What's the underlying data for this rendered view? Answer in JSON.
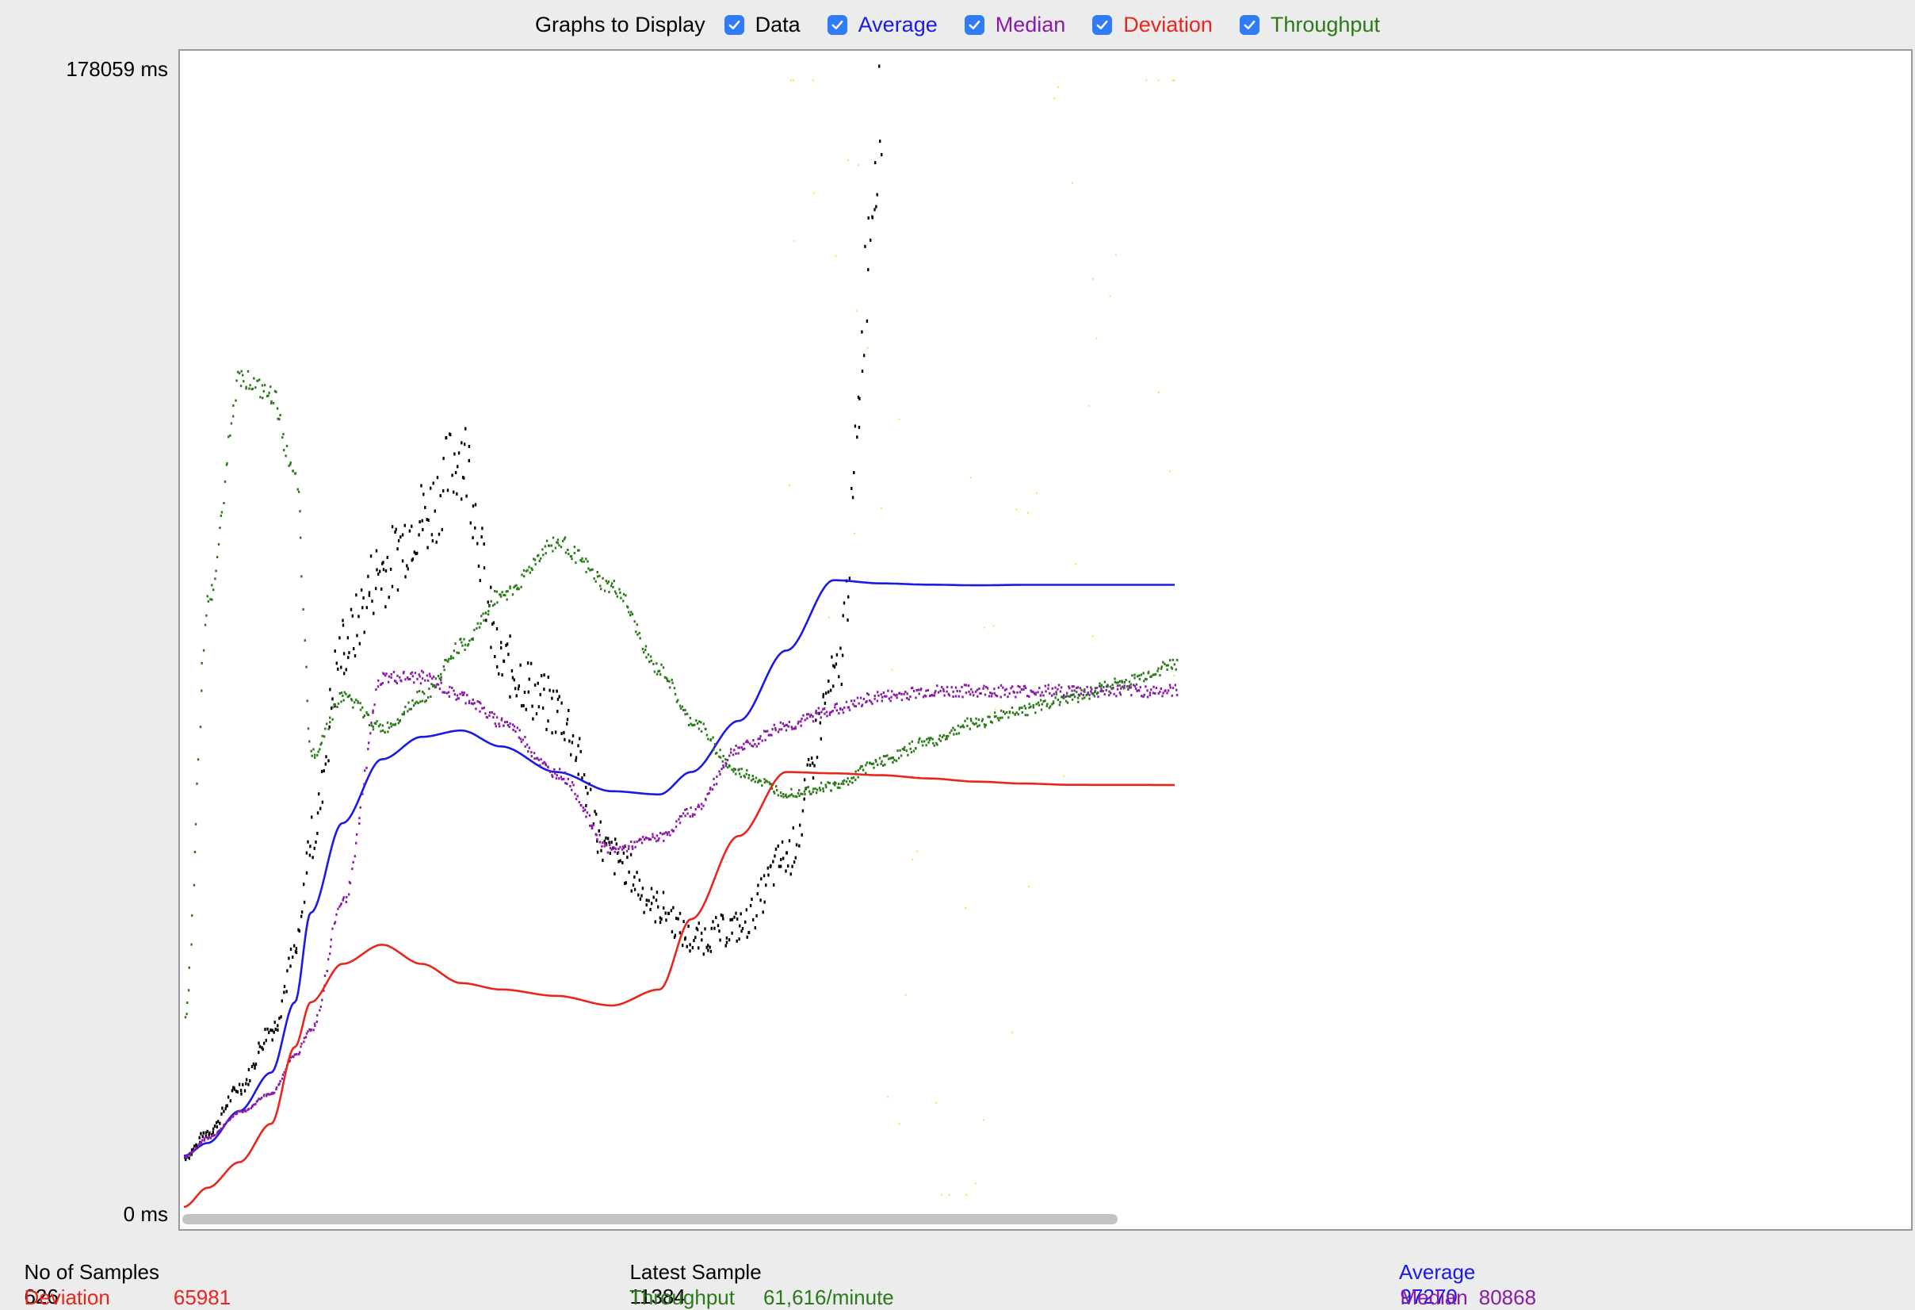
{
  "controls": {
    "title": "Graphs to Display",
    "checkboxes": [
      {
        "label": "Data",
        "checked": true,
        "color": "#000000"
      },
      {
        "label": "Average",
        "checked": true,
        "color": "#1a1ae6"
      },
      {
        "label": "Median",
        "checked": true,
        "color": "#8a1aa8"
      },
      {
        "label": "Deviation",
        "checked": true,
        "color": "#e8261e"
      },
      {
        "label": "Throughput",
        "checked": true,
        "color": "#2a7a18"
      }
    ]
  },
  "axis": {
    "y_max_label": "178059  ms",
    "y_min_label": "0  ms"
  },
  "stats": {
    "samples_label": "No of Samples",
    "samples_value": "626",
    "latest_label": "Latest Sample",
    "latest_value": "11384",
    "average_label": "Average",
    "average_value": "97270",
    "deviation_label": "Deviation",
    "deviation_value": "65981",
    "throughput_label": "Throughput",
    "throughput_value": "61,616/minute",
    "median_label": "Median",
    "median_value": "80868"
  },
  "chart_data": {
    "type": "line",
    "y_max": 178059,
    "y_unit": "ms",
    "x_label": "sample index",
    "x": [
      0,
      15,
      35,
      55,
      70,
      80,
      100,
      125,
      150,
      175,
      200,
      235,
      270,
      300,
      320,
      350,
      380,
      410,
      440,
      470,
      500,
      530,
      560,
      590,
      626
    ],
    "series": [
      {
        "name": "Data",
        "color": "#000000",
        "style": "dots",
        "values": [
          8000,
          12000,
          19000,
          28000,
          40000,
          58000,
          88000,
          100000,
          108000,
          118000,
          85000,
          78000,
          55000,
          47000,
          42000,
          44000,
          55000,
          82000,
          170000,
          null,
          null,
          null,
          null,
          null,
          null
        ]
      },
      {
        "name": "Average",
        "color": "#1a1ae6",
        "style": "line",
        "values": [
          8000,
          10000,
          15000,
          21000,
          32000,
          46000,
          60000,
          70000,
          73500,
          74500,
          72000,
          68000,
          65000,
          64500,
          68000,
          76000,
          87000,
          98000,
          97500,
          97300,
          97200,
          97270,
          97270,
          97270,
          97270
        ]
      },
      {
        "name": "Median",
        "color": "#8a1aa8",
        "style": "dots",
        "values": [
          8000,
          11000,
          15000,
          18000,
          24000,
          28000,
          48000,
          83000,
          83000,
          80000,
          76000,
          68000,
          56000,
          58000,
          62000,
          72000,
          75500,
          78000,
          80000,
          80800,
          80868,
          80868,
          80868,
          80868,
          80868
        ]
      },
      {
        "name": "Deviation",
        "color": "#e8261e",
        "style": "line",
        "values": [
          0,
          3000,
          7000,
          13000,
          25000,
          32000,
          38000,
          41000,
          38000,
          35000,
          34000,
          33000,
          31500,
          34000,
          45000,
          58000,
          68000,
          67800,
          67500,
          67000,
          66500,
          66200,
          66000,
          65990,
          65981
        ]
      },
      {
        "name": "Throughput",
        "color": "#2a7a18",
        "style": "dots",
        "values": [
          30000,
          95000,
          130000,
          127000,
          114000,
          71000,
          80000,
          75000,
          80000,
          88000,
          96000,
          104000,
          97000,
          84000,
          76000,
          68000,
          65000,
          66000,
          70000,
          73000,
          76000,
          78000,
          80000,
          82000,
          85000
        ]
      },
      {
        "name": "Throughput (sparse)",
        "color": "#e8e84a",
        "style": "sparse-dots",
        "values": [
          null,
          null,
          null,
          null,
          null,
          null,
          null,
          null,
          null,
          null,
          null,
          null,
          null,
          null,
          null,
          null,
          150000,
          120000,
          90000,
          60000,
          30000,
          100000,
          140000,
          170000,
          110000
        ]
      }
    ]
  }
}
